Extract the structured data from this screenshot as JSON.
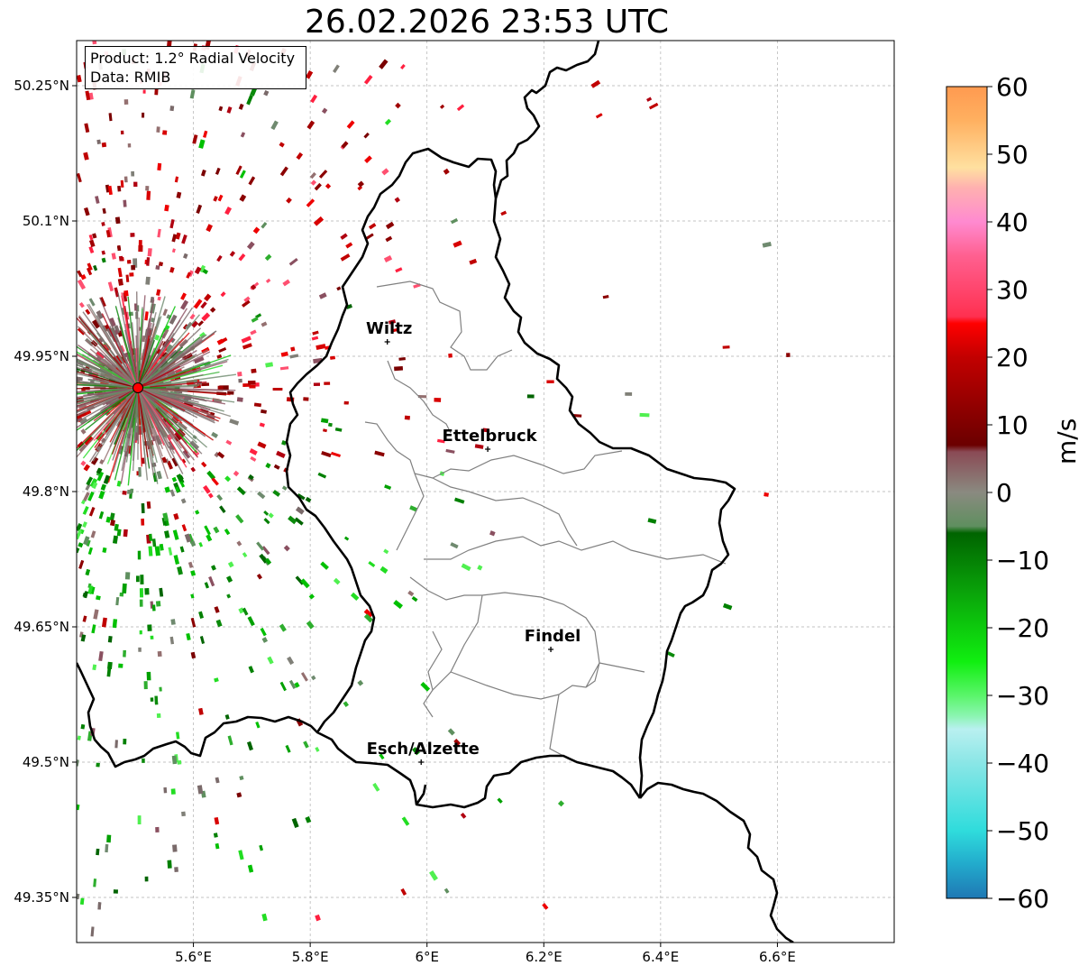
{
  "title": "26.02.2026 23:53 UTC",
  "info": {
    "product": "Product: 1.2° Radial Velocity",
    "data_source": "Data: RMIB"
  },
  "colorbar": {
    "unit": "m/s",
    "min": -60,
    "max": 60,
    "ticks": [
      "60",
      "50",
      "40",
      "30",
      "20",
      "10",
      "0",
      "−10",
      "−20",
      "−30",
      "−40",
      "−50",
      "−60"
    ],
    "tick_values": [
      60,
      50,
      40,
      30,
      20,
      10,
      0,
      -10,
      -20,
      -30,
      -40,
      -50,
      -60
    ],
    "stops": [
      {
        "value": -60,
        "color": "#1f78b4"
      },
      {
        "value": -55,
        "color": "#22aacc"
      },
      {
        "value": -50,
        "color": "#2fdcdc"
      },
      {
        "value": -40,
        "color": "#8ae6e6"
      },
      {
        "value": -35,
        "color": "#b9f0f0"
      },
      {
        "value": -33,
        "color": "#8af5b0"
      },
      {
        "value": -30,
        "color": "#5af56a"
      },
      {
        "value": -25,
        "color": "#10ef10"
      },
      {
        "value": -15,
        "color": "#0aa50a"
      },
      {
        "value": -6,
        "color": "#006400"
      },
      {
        "value": -5,
        "color": "#5f8f5f"
      },
      {
        "value": 0,
        "color": "#8a8a80"
      },
      {
        "value": 6,
        "color": "#8a4a55"
      },
      {
        "value": 7,
        "color": "#6b0000"
      },
      {
        "value": 20,
        "color": "#c20000"
      },
      {
        "value": 25,
        "color": "#ff0000"
      },
      {
        "value": 26,
        "color": "#ff3050"
      },
      {
        "value": 35,
        "color": "#ff6090"
      },
      {
        "value": 40,
        "color": "#ff8ad0"
      },
      {
        "value": 45,
        "color": "#ffb0b0"
      },
      {
        "value": 48,
        "color": "#ffe0a0"
      },
      {
        "value": 55,
        "color": "#ffb060"
      },
      {
        "value": 60,
        "color": "#ff9a50"
      }
    ]
  },
  "axes": {
    "x_ticks": [
      "5.6°E",
      "5.8°E",
      "6°E",
      "6.2°E",
      "6.4°E",
      "6.6°E"
    ],
    "x_values": [
      5.6,
      5.8,
      6.0,
      6.2,
      6.4,
      6.6
    ],
    "y_ticks": [
      "50.25°N",
      "50.1°N",
      "49.95°N",
      "49.8°N",
      "49.65°N",
      "49.5°N",
      "49.35°N"
    ],
    "y_values": [
      50.25,
      50.1,
      49.95,
      49.8,
      49.65,
      49.5,
      49.35
    ],
    "lon_range": [
      5.4,
      6.8
    ],
    "lat_range": [
      49.3,
      50.3
    ]
  },
  "radar": {
    "lon": 5.505,
    "lat": 49.915,
    "marker_color": "#ff0000"
  },
  "cities": [
    {
      "name": "Wiltz",
      "lon": 5.932,
      "lat": 49.966
    },
    {
      "name": "Ettelbruck",
      "lon": 6.104,
      "lat": 49.847
    },
    {
      "name": "Findel",
      "lon": 6.212,
      "lat": 49.625
    },
    {
      "name": "Esch/Alzette",
      "lon": 5.99,
      "lat": 49.5
    }
  ],
  "colors": {
    "border": "#000000",
    "canton": "#808080",
    "grid": "#b0b0b0"
  }
}
